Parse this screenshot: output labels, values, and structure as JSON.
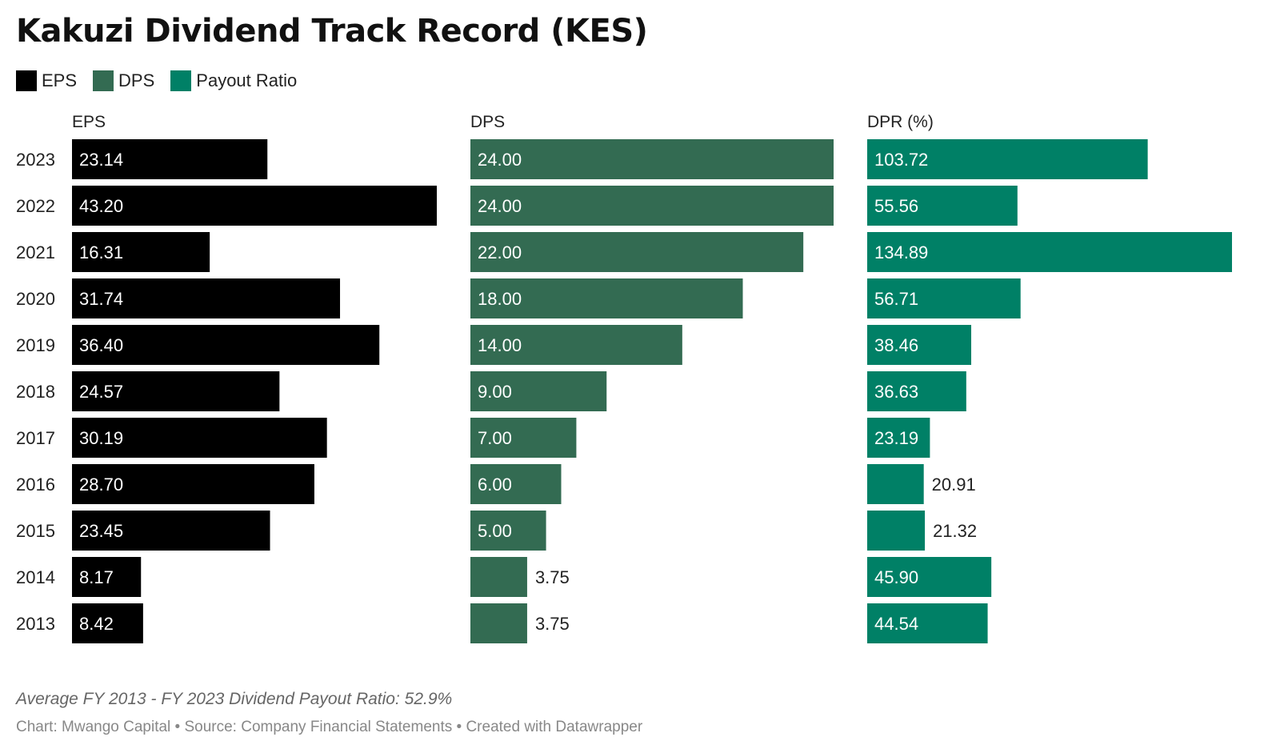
{
  "title": "Kakuzi Dividend Track Record (KES)",
  "legend": [
    {
      "label": "EPS",
      "color": "#000000"
    },
    {
      "label": "DPS",
      "color": "#336b52"
    },
    {
      "label": "Payout Ratio",
      "color": "#008066"
    }
  ],
  "note": "Average FY 2013 - FY 2023 Dividend Payout Ratio: 52.9%",
  "credit": "Chart: Mwango Capital • Source: Company Financial Statements • Created with Datawrapper",
  "chart_data": {
    "type": "bar",
    "orientation": "horizontal",
    "categories": [
      "2023",
      "2022",
      "2021",
      "2020",
      "2019",
      "2018",
      "2017",
      "2016",
      "2015",
      "2014",
      "2013"
    ],
    "series": [
      {
        "name": "EPS",
        "color": "#000000",
        "values": [
          23.14,
          43.2,
          16.31,
          31.74,
          36.4,
          24.57,
          30.19,
          28.7,
          23.45,
          8.17,
          8.42
        ],
        "labels": [
          "23.14",
          "43.20",
          "16.31",
          "31.74",
          "36.40",
          "24.57",
          "30.19",
          "28.70",
          "23.45",
          "8.17",
          "8.42"
        ],
        "xmax": 43.2
      },
      {
        "name": "DPS",
        "color": "#336b52",
        "values": [
          24.0,
          24.0,
          22.0,
          18.0,
          14.0,
          9.0,
          7.0,
          6.0,
          5.0,
          3.75,
          3.75
        ],
        "labels": [
          "24.00",
          "24.00",
          "22.00",
          "18.00",
          "14.00",
          "9.00",
          "7.00",
          "6.00",
          "5.00",
          "3.75",
          "3.75"
        ],
        "xmax": 24.0
      },
      {
        "name": "DPR (%)",
        "color": "#008066",
        "values": [
          103.72,
          55.56,
          134.89,
          56.71,
          38.46,
          36.63,
          23.19,
          20.91,
          21.32,
          45.9,
          44.54
        ],
        "labels": [
          "103.72",
          "55.56",
          "134.89",
          "56.71",
          "38.46",
          "36.63",
          "23.19",
          "20.91",
          "21.32",
          "45.90",
          "44.54"
        ],
        "xmax": 134.89
      }
    ],
    "legend_position": "top-left",
    "grid": false
  }
}
